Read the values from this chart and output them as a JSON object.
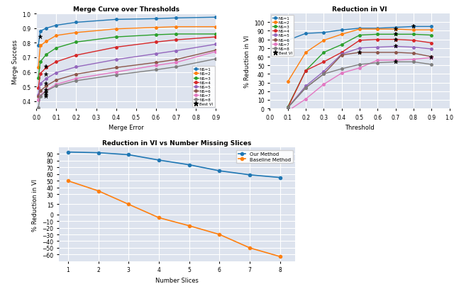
{
  "merge_curve": {
    "title": "Merge Curve over Thresholds",
    "xlabel": "Merge Error",
    "ylabel": "Merge Success",
    "xlim": [
      0.0,
      0.9
    ],
    "ylim": [
      0.35,
      1.0
    ],
    "ns_colors": [
      "#1f77b4",
      "#ff7f0e",
      "#2ca02c",
      "#d62728",
      "#9467bd",
      "#8c564b",
      "#e377c2",
      "#7f7f7f"
    ],
    "ns_labels": [
      "NS=1",
      "NS=2",
      "NS=3",
      "NS=4",
      "NS=5",
      "NS=6",
      "NS=7",
      "NS=8"
    ],
    "series": [
      {
        "x": [
          0.01,
          0.02,
          0.05,
          0.1,
          0.2,
          0.4,
          0.6,
          0.7,
          0.9
        ],
        "y": [
          0.78,
          0.88,
          0.9,
          0.92,
          0.94,
          0.96,
          0.965,
          0.97,
          0.975
        ]
      },
      {
        "x": [
          0.01,
          0.02,
          0.05,
          0.1,
          0.2,
          0.4,
          0.6,
          0.7,
          0.9
        ],
        "y": [
          0.63,
          0.78,
          0.81,
          0.85,
          0.87,
          0.895,
          0.905,
          0.91,
          0.91
        ]
      },
      {
        "x": [
          0.01,
          0.02,
          0.05,
          0.1,
          0.2,
          0.4,
          0.6,
          0.7,
          0.9
        ],
        "y": [
          0.56,
          0.67,
          0.72,
          0.765,
          0.805,
          0.84,
          0.855,
          0.86,
          0.86
        ]
      },
      {
        "x": [
          0.01,
          0.02,
          0.05,
          0.1,
          0.2,
          0.4,
          0.6,
          0.7,
          0.9
        ],
        "y": [
          0.49,
          0.59,
          0.63,
          0.67,
          0.715,
          0.77,
          0.805,
          0.82,
          0.84
        ]
      },
      {
        "x": [
          0.01,
          0.02,
          0.05,
          0.1,
          0.2,
          0.4,
          0.6,
          0.7,
          0.9
        ],
        "y": [
          0.445,
          0.52,
          0.555,
          0.595,
          0.635,
          0.685,
          0.725,
          0.745,
          0.79
        ]
      },
      {
        "x": [
          0.01,
          0.02,
          0.05,
          0.1,
          0.2,
          0.4,
          0.6,
          0.7,
          0.9
        ],
        "y": [
          0.435,
          0.47,
          0.505,
          0.545,
          0.585,
          0.63,
          0.665,
          0.685,
          0.75
        ]
      },
      {
        "x": [
          0.01,
          0.02,
          0.05,
          0.1,
          0.2,
          0.4,
          0.6,
          0.7,
          0.9
        ],
        "y": [
          0.41,
          0.44,
          0.475,
          0.515,
          0.555,
          0.6,
          0.645,
          0.665,
          0.74
        ]
      },
      {
        "x": [
          0.01,
          0.02,
          0.05,
          0.1,
          0.2,
          0.4,
          0.6,
          0.7,
          0.9
        ],
        "y": [
          0.355,
          0.435,
          0.47,
          0.505,
          0.54,
          0.58,
          0.615,
          0.635,
          0.69
        ]
      }
    ],
    "best_vi": [
      [
        0.02,
        0.84
      ],
      [
        0.05,
        0.635
      ],
      [
        0.05,
        0.585
      ],
      [
        0.05,
        0.52
      ],
      [
        0.05,
        0.475
      ],
      [
        0.05,
        0.455
      ],
      [
        0.05,
        0.435
      ],
      [
        0.05,
        0.445
      ]
    ]
  },
  "reduction_vi": {
    "title": "Reduction in VI",
    "xlabel": "Threshold",
    "ylabel": "% Reduction in VI",
    "xlim": [
      0.0,
      1.0
    ],
    "ylim": [
      0,
      110
    ],
    "ns_colors": [
      "#1f77b4",
      "#ff7f0e",
      "#2ca02c",
      "#d62728",
      "#9467bd",
      "#8c564b",
      "#e377c2",
      "#7f7f7f"
    ],
    "ns_labels": [
      "NS=1",
      "NS=2",
      "NS=3",
      "NS=4",
      "NS=5",
      "NS=6",
      "NS=7",
      "NS=8"
    ],
    "series": [
      {
        "x": [
          0.1,
          0.2,
          0.3,
          0.4,
          0.5,
          0.6,
          0.7,
          0.8,
          0.9
        ],
        "y": [
          79,
          87,
          88,
          91,
          93,
          93,
          94,
          95,
          95
        ]
      },
      {
        "x": [
          0.1,
          0.2,
          0.3,
          0.4,
          0.5,
          0.6,
          0.7,
          0.8,
          0.9
        ],
        "y": [
          31,
          65,
          79,
          86,
          92,
          92,
          92,
          91,
          91
        ]
      },
      {
        "x": [
          0.1,
          0.2,
          0.3,
          0.4,
          0.5,
          0.6,
          0.7,
          0.8,
          0.9
        ],
        "y": [
          2,
          44,
          65,
          74,
          85,
          86,
          86,
          86,
          85
        ]
      },
      {
        "x": [
          0.1,
          0.2,
          0.3,
          0.4,
          0.5,
          0.6,
          0.7,
          0.8,
          0.9
        ],
        "y": [
          1,
          44,
          54,
          65,
          79,
          80,
          80,
          79,
          76
        ]
      },
      {
        "x": [
          0.1,
          0.2,
          0.3,
          0.4,
          0.5,
          0.6,
          0.7,
          0.8,
          0.9
        ],
        "y": [
          1,
          26,
          43,
          63,
          70,
          71,
          72,
          71,
          69
        ]
      },
      {
        "x": [
          0.1,
          0.2,
          0.3,
          0.4,
          0.5,
          0.6,
          0.7,
          0.8,
          0.9
        ],
        "y": [
          1,
          24,
          40,
          62,
          65,
          65,
          65,
          64,
          60
        ]
      },
      {
        "x": [
          0.1,
          0.2,
          0.3,
          0.4,
          0.5,
          0.6,
          0.7,
          0.8,
          0.9
        ],
        "y": [
          -3,
          11,
          28,
          41,
          47,
          56,
          56,
          57,
          59
        ]
      },
      {
        "x": [
          0.1,
          0.2,
          0.3,
          0.4,
          0.5,
          0.6,
          0.7,
          0.8,
          0.9
        ],
        "y": [
          1,
          24,
          40,
          46,
          51,
          53,
          54,
          54,
          51
        ]
      }
    ],
    "best_vi": [
      [
        0.8,
        95
      ],
      [
        0.7,
        92
      ],
      [
        0.7,
        86
      ],
      [
        0.7,
        80
      ],
      [
        0.7,
        72
      ],
      [
        0.5,
        65
      ],
      [
        0.9,
        59
      ],
      [
        0.7,
        54
      ]
    ]
  },
  "reduction_vs_slices": {
    "title": "Reduction in VI vs Number Missing Slices",
    "xlabel": "Number Slices",
    "ylabel": "% Reduction in VI",
    "xlim": [
      0.7,
      8.5
    ],
    "ylim": [
      -70,
      100
    ],
    "yticks": [
      90,
      80,
      70,
      60,
      50,
      40,
      30,
      15,
      0,
      -10,
      -20,
      -30,
      -40,
      -50,
      -60
    ],
    "our_method": {
      "x": [
        1,
        2,
        3,
        4,
        5,
        6,
        7,
        8
      ],
      "y": [
        93,
        92,
        89,
        81,
        74,
        65,
        59,
        55
      ],
      "color": "#1f77b4",
      "label": "Our Method"
    },
    "baseline": {
      "x": [
        1,
        2,
        3,
        4,
        5,
        6,
        7,
        8
      ],
      "y": [
        50,
        35,
        15,
        -5,
        -17,
        -30,
        -50,
        -63
      ],
      "color": "#ff7f0e",
      "label": "Baseline Method"
    }
  },
  "bg_color": "#dde3ee",
  "figure_bg": "#ffffff"
}
